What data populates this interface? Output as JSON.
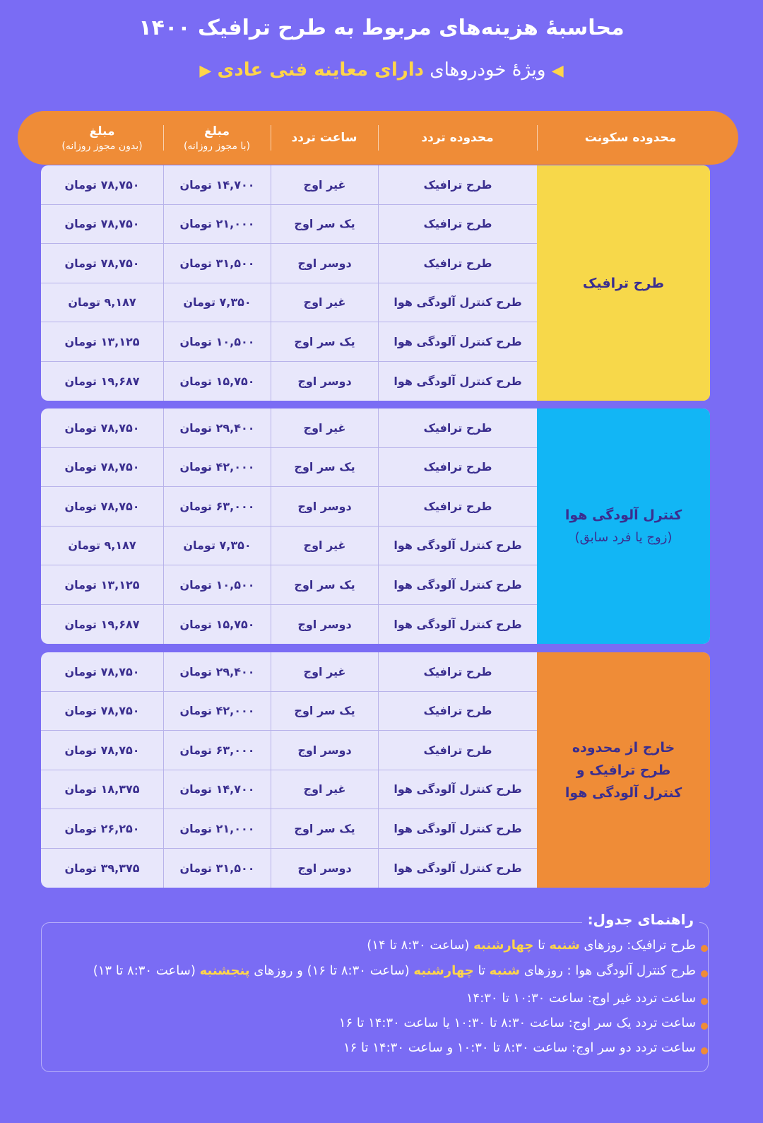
{
  "header": {
    "title": "محاسبهٔ هزینه‌های مربوط به طرح ترافیک ۱۴۰۰",
    "subtitle": "ویژهٔ خودروهای",
    "subtitle_highlight": "دارای معاینه فنی عادی"
  },
  "table": {
    "columns": [
      {
        "title": "محدوده سکونت"
      },
      {
        "title": "محدوده تردد"
      },
      {
        "title": "ساعت تردد"
      },
      {
        "title": "مبلغ",
        "note": "(با مجوز روزانه)"
      },
      {
        "title": "مبلغ",
        "note": "(بدون مجوز روزانه)"
      }
    ],
    "groups": [
      {
        "label": [
          "طرح ترافیک"
        ],
        "color": "#f7d84a",
        "rows": [
          [
            "طرح ترافیک",
            "غیر اوج",
            "۱۴,۷۰۰ تومان",
            "۷۸,۷۵۰ تومان"
          ],
          [
            "طرح ترافیک",
            "یک سر اوج",
            "۲۱,۰۰۰ تومان",
            "۷۸,۷۵۰ تومان"
          ],
          [
            "طرح ترافیک",
            "دوسر اوج",
            "۳۱,۵۰۰ تومان",
            "۷۸,۷۵۰ تومان"
          ],
          [
            "طرح کنترل آلودگی هوا",
            "غیر اوج",
            "۷,۳۵۰ تومان",
            "۹,۱۸۷ تومان"
          ],
          [
            "طرح کنترل آلودگی هوا",
            "یک سر اوج",
            "۱۰,۵۰۰ تومان",
            "۱۳,۱۲۵ تومان"
          ],
          [
            "طرح کنترل آلودگی هوا",
            "دوسر اوج",
            "۱۵,۷۵۰ تومان",
            "۱۹,۶۸۷ تومان"
          ]
        ]
      },
      {
        "label": [
          "کنترل آلودگی هوا"
        ],
        "note": "(زوج یا فرد سابق)",
        "color": "#12b6f5",
        "rows": [
          [
            "طرح ترافیک",
            "غیر اوج",
            "۲۹,۴۰۰ تومان",
            "۷۸,۷۵۰ تومان"
          ],
          [
            "طرح ترافیک",
            "یک سر اوج",
            "۴۲,۰۰۰ تومان",
            "۷۸,۷۵۰ تومان"
          ],
          [
            "طرح ترافیک",
            "دوسر اوج",
            "۶۳,۰۰۰ تومان",
            "۷۸,۷۵۰ تومان"
          ],
          [
            "طرح کنترل آلودگی هوا",
            "غیر اوج",
            "۷,۳۵۰ تومان",
            "۹,۱۸۷ تومان"
          ],
          [
            "طرح کنترل آلودگی هوا",
            "یک سر اوج",
            "۱۰,۵۰۰ تومان",
            "۱۳,۱۲۵ تومان"
          ],
          [
            "طرح کنترل آلودگی هوا",
            "دوسر اوج",
            "۱۵,۷۵۰ تومان",
            "۱۹,۶۸۷ تومان"
          ]
        ]
      },
      {
        "label": [
          "خارج از محدوده",
          "طرح ترافیک و",
          "کنترل آلودگی هوا"
        ],
        "color": "#ef8c37",
        "rows": [
          [
            "طرح ترافیک",
            "غیر اوج",
            "۲۹,۴۰۰ تومان",
            "۷۸,۷۵۰ تومان"
          ],
          [
            "طرح ترافیک",
            "یک سر اوج",
            "۴۲,۰۰۰ تومان",
            "۷۸,۷۵۰ تومان"
          ],
          [
            "طرح ترافیک",
            "دوسر اوج",
            "۶۳,۰۰۰ تومان",
            "۷۸,۷۵۰ تومان"
          ],
          [
            "طرح کنترل آلودگی هوا",
            "غیر اوج",
            "۱۴,۷۰۰ تومان",
            "۱۸,۳۷۵ تومان"
          ],
          [
            "طرح کنترل آلودگی هوا",
            "یک سر اوج",
            "۲۱,۰۰۰ تومان",
            "۲۶,۲۵۰ تومان"
          ],
          [
            "طرح کنترل آلودگی هوا",
            "دوسر اوج",
            "۳۱,۵۰۰ تومان",
            "۳۹,۳۷۵ تومان"
          ]
        ]
      }
    ]
  },
  "guide": {
    "title": "راهنمای جدول:",
    "items": [
      [
        {
          "text": "طرح ترافیک: روزهای "
        },
        {
          "text": "شنبه",
          "highlight": true
        },
        {
          "text": " تا "
        },
        {
          "text": "چهارشنبه",
          "highlight": true
        },
        {
          "text": " (ساعت ۸:۳۰ تا ۱۴)"
        }
      ],
      [
        {
          "text": "طرح کنترل آلودگی هوا : روزهای "
        },
        {
          "text": "شنبه",
          "highlight": true
        },
        {
          "text": " تا "
        },
        {
          "text": "چهارشنبه",
          "highlight": true
        },
        {
          "text": " (ساعت ۸:۳۰ تا ۱۶)  و روزهای "
        },
        {
          "text": "پنجشنبه",
          "highlight": true
        },
        {
          "text": " (ساعت ۸:۳۰ تا ۱۳)"
        }
      ],
      [
        {
          "text": "ساعت تردد غیر اوج: ساعت ۱۰:۳۰ تا ۱۴:۳۰"
        }
      ],
      [
        {
          "text": "ساعت تردد یک سر اوج:  ساعت ۸:۳۰ تا ۱۰:۳۰  یا  ساعت ۱۴:۳۰ تا ۱۶"
        }
      ],
      [
        {
          "text": "ساعت تردد دو سر اوج:  ساعت ۸:۳۰ تا ۱۰:۳۰  و  ساعت ۱۴:۳۰ تا ۱۶"
        }
      ]
    ]
  }
}
